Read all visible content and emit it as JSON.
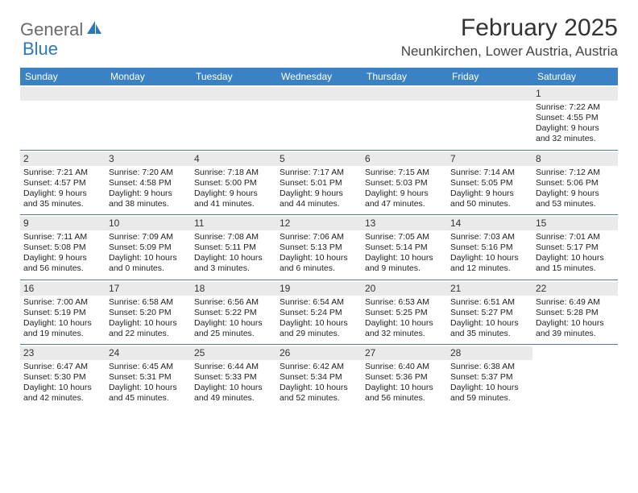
{
  "brand": {
    "part1": "General",
    "part2": "Blue"
  },
  "title": "February 2025",
  "location": "Neunkirchen, Lower Austria, Austria",
  "colors": {
    "header_bar": "#3b82c4",
    "row_stripe": "#eaeaea",
    "week_divider": "#5a7a9a",
    "text": "#222222",
    "brand_gray": "#6b6b6b",
    "brand_blue": "#2f78b7"
  },
  "days_of_week": [
    "Sunday",
    "Monday",
    "Tuesday",
    "Wednesday",
    "Thursday",
    "Friday",
    "Saturday"
  ],
  "weeks": [
    [
      null,
      null,
      null,
      null,
      null,
      null,
      {
        "n": "1",
        "sr": "Sunrise: 7:22 AM",
        "ss": "Sunset: 4:55 PM",
        "dl": "Daylight: 9 hours and 32 minutes."
      }
    ],
    [
      {
        "n": "2",
        "sr": "Sunrise: 7:21 AM",
        "ss": "Sunset: 4:57 PM",
        "dl": "Daylight: 9 hours and 35 minutes."
      },
      {
        "n": "3",
        "sr": "Sunrise: 7:20 AM",
        "ss": "Sunset: 4:58 PM",
        "dl": "Daylight: 9 hours and 38 minutes."
      },
      {
        "n": "4",
        "sr": "Sunrise: 7:18 AM",
        "ss": "Sunset: 5:00 PM",
        "dl": "Daylight: 9 hours and 41 minutes."
      },
      {
        "n": "5",
        "sr": "Sunrise: 7:17 AM",
        "ss": "Sunset: 5:01 PM",
        "dl": "Daylight: 9 hours and 44 minutes."
      },
      {
        "n": "6",
        "sr": "Sunrise: 7:15 AM",
        "ss": "Sunset: 5:03 PM",
        "dl": "Daylight: 9 hours and 47 minutes."
      },
      {
        "n": "7",
        "sr": "Sunrise: 7:14 AM",
        "ss": "Sunset: 5:05 PM",
        "dl": "Daylight: 9 hours and 50 minutes."
      },
      {
        "n": "8",
        "sr": "Sunrise: 7:12 AM",
        "ss": "Sunset: 5:06 PM",
        "dl": "Daylight: 9 hours and 53 minutes."
      }
    ],
    [
      {
        "n": "9",
        "sr": "Sunrise: 7:11 AM",
        "ss": "Sunset: 5:08 PM",
        "dl": "Daylight: 9 hours and 56 minutes."
      },
      {
        "n": "10",
        "sr": "Sunrise: 7:09 AM",
        "ss": "Sunset: 5:09 PM",
        "dl": "Daylight: 10 hours and 0 minutes."
      },
      {
        "n": "11",
        "sr": "Sunrise: 7:08 AM",
        "ss": "Sunset: 5:11 PM",
        "dl": "Daylight: 10 hours and 3 minutes."
      },
      {
        "n": "12",
        "sr": "Sunrise: 7:06 AM",
        "ss": "Sunset: 5:13 PM",
        "dl": "Daylight: 10 hours and 6 minutes."
      },
      {
        "n": "13",
        "sr": "Sunrise: 7:05 AM",
        "ss": "Sunset: 5:14 PM",
        "dl": "Daylight: 10 hours and 9 minutes."
      },
      {
        "n": "14",
        "sr": "Sunrise: 7:03 AM",
        "ss": "Sunset: 5:16 PM",
        "dl": "Daylight: 10 hours and 12 minutes."
      },
      {
        "n": "15",
        "sr": "Sunrise: 7:01 AM",
        "ss": "Sunset: 5:17 PM",
        "dl": "Daylight: 10 hours and 15 minutes."
      }
    ],
    [
      {
        "n": "16",
        "sr": "Sunrise: 7:00 AM",
        "ss": "Sunset: 5:19 PM",
        "dl": "Daylight: 10 hours and 19 minutes."
      },
      {
        "n": "17",
        "sr": "Sunrise: 6:58 AM",
        "ss": "Sunset: 5:20 PM",
        "dl": "Daylight: 10 hours and 22 minutes."
      },
      {
        "n": "18",
        "sr": "Sunrise: 6:56 AM",
        "ss": "Sunset: 5:22 PM",
        "dl": "Daylight: 10 hours and 25 minutes."
      },
      {
        "n": "19",
        "sr": "Sunrise: 6:54 AM",
        "ss": "Sunset: 5:24 PM",
        "dl": "Daylight: 10 hours and 29 minutes."
      },
      {
        "n": "20",
        "sr": "Sunrise: 6:53 AM",
        "ss": "Sunset: 5:25 PM",
        "dl": "Daylight: 10 hours and 32 minutes."
      },
      {
        "n": "21",
        "sr": "Sunrise: 6:51 AM",
        "ss": "Sunset: 5:27 PM",
        "dl": "Daylight: 10 hours and 35 minutes."
      },
      {
        "n": "22",
        "sr": "Sunrise: 6:49 AM",
        "ss": "Sunset: 5:28 PM",
        "dl": "Daylight: 10 hours and 39 minutes."
      }
    ],
    [
      {
        "n": "23",
        "sr": "Sunrise: 6:47 AM",
        "ss": "Sunset: 5:30 PM",
        "dl": "Daylight: 10 hours and 42 minutes."
      },
      {
        "n": "24",
        "sr": "Sunrise: 6:45 AM",
        "ss": "Sunset: 5:31 PM",
        "dl": "Daylight: 10 hours and 45 minutes."
      },
      {
        "n": "25",
        "sr": "Sunrise: 6:44 AM",
        "ss": "Sunset: 5:33 PM",
        "dl": "Daylight: 10 hours and 49 minutes."
      },
      {
        "n": "26",
        "sr": "Sunrise: 6:42 AM",
        "ss": "Sunset: 5:34 PM",
        "dl": "Daylight: 10 hours and 52 minutes."
      },
      {
        "n": "27",
        "sr": "Sunrise: 6:40 AM",
        "ss": "Sunset: 5:36 PM",
        "dl": "Daylight: 10 hours and 56 minutes."
      },
      {
        "n": "28",
        "sr": "Sunrise: 6:38 AM",
        "ss": "Sunset: 5:37 PM",
        "dl": "Daylight: 10 hours and 59 minutes."
      },
      null
    ]
  ]
}
